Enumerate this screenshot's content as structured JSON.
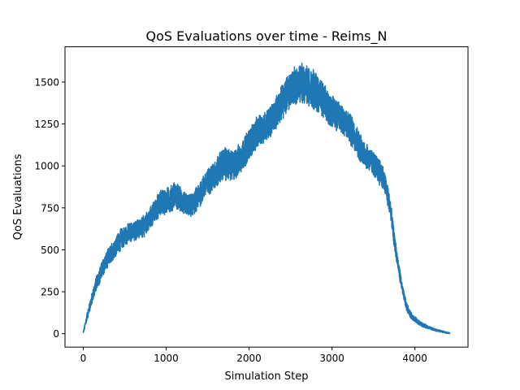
{
  "chart_data": {
    "type": "line",
    "title": "QoS Evaluations over time - Reims_N",
    "xlabel": "Simulation Step",
    "ylabel": "QoS Evaluations",
    "xlim": [
      -220,
      4640
    ],
    "ylim": [
      -80,
      1710
    ],
    "xticks": [
      0,
      1000,
      2000,
      3000,
      4000
    ],
    "yticks": [
      0,
      250,
      500,
      750,
      1000,
      1250,
      1500
    ],
    "x_range": [
      0,
      4420
    ],
    "grid": false,
    "legend": "none",
    "line_color": "#1f77b4",
    "series": [
      {
        "x": [
          0,
          50,
          100,
          150,
          200,
          250,
          300,
          350,
          400,
          450,
          500,
          550,
          600,
          650,
          700,
          750,
          800,
          850,
          900,
          950,
          1000,
          1050,
          1100,
          1150,
          1200,
          1250,
          1300,
          1350,
          1400,
          1450,
          1500,
          1550,
          1600,
          1650,
          1700,
          1750,
          1800,
          1850,
          1900,
          1950,
          2000,
          2050,
          2100,
          2150,
          2200,
          2250,
          2300,
          2350,
          2400,
          2450,
          2500,
          2550,
          2600,
          2650,
          2700,
          2750,
          2800,
          2850,
          2900,
          2950,
          3000,
          3050,
          3100,
          3150,
          3200,
          3250,
          3300,
          3350,
          3400,
          3450,
          3500,
          3550,
          3600,
          3650,
          3700,
          3750,
          3800,
          3850,
          3900,
          3950,
          4000,
          4050,
          4100,
          4150,
          4200,
          4250,
          4300,
          4350,
          4400,
          4420
        ],
        "values": [
          5,
          110,
          200,
          290,
          350,
          410,
          450,
          490,
          530,
          560,
          580,
          600,
          610,
          620,
          630,
          650,
          680,
          720,
          760,
          790,
          790,
          800,
          830,
          810,
          780,
          770,
          760,
          790,
          830,
          870,
          900,
          930,
          950,
          990,
          1010,
          1010,
          1000,
          1020,
          1050,
          1090,
          1130,
          1170,
          1200,
          1220,
          1240,
          1260,
          1300,
          1340,
          1380,
          1420,
          1460,
          1480,
          1490,
          1500,
          1480,
          1470,
          1450,
          1420,
          1380,
          1350,
          1330,
          1310,
          1290,
          1260,
          1230,
          1200,
          1150,
          1100,
          1070,
          1040,
          1010,
          980,
          950,
          870,
          760,
          560,
          400,
          260,
          160,
          110,
          85,
          65,
          50,
          40,
          30,
          22,
          16,
          10,
          5,
          3
        ],
        "noise_amplitude": [
          5,
          25,
          35,
          40,
          50,
          55,
          55,
          60,
          60,
          65,
          65,
          60,
          60,
          60,
          65,
          65,
          70,
          70,
          75,
          80,
          80,
          80,
          80,
          80,
          75,
          70,
          70,
          75,
          80,
          80,
          85,
          90,
          95,
          100,
          100,
          100,
          95,
          95,
          95,
          95,
          95,
          95,
          95,
          95,
          95,
          95,
          95,
          100,
          105,
          110,
          115,
          120,
          120,
          120,
          120,
          125,
          120,
          115,
          110,
          105,
          100,
          100,
          100,
          95,
          95,
          95,
          90,
          85,
          80,
          80,
          80,
          80,
          80,
          70,
          60,
          50,
          40,
          30,
          25,
          20,
          18,
          15,
          12,
          10,
          8,
          7,
          6,
          5,
          4,
          3
        ]
      }
    ]
  }
}
